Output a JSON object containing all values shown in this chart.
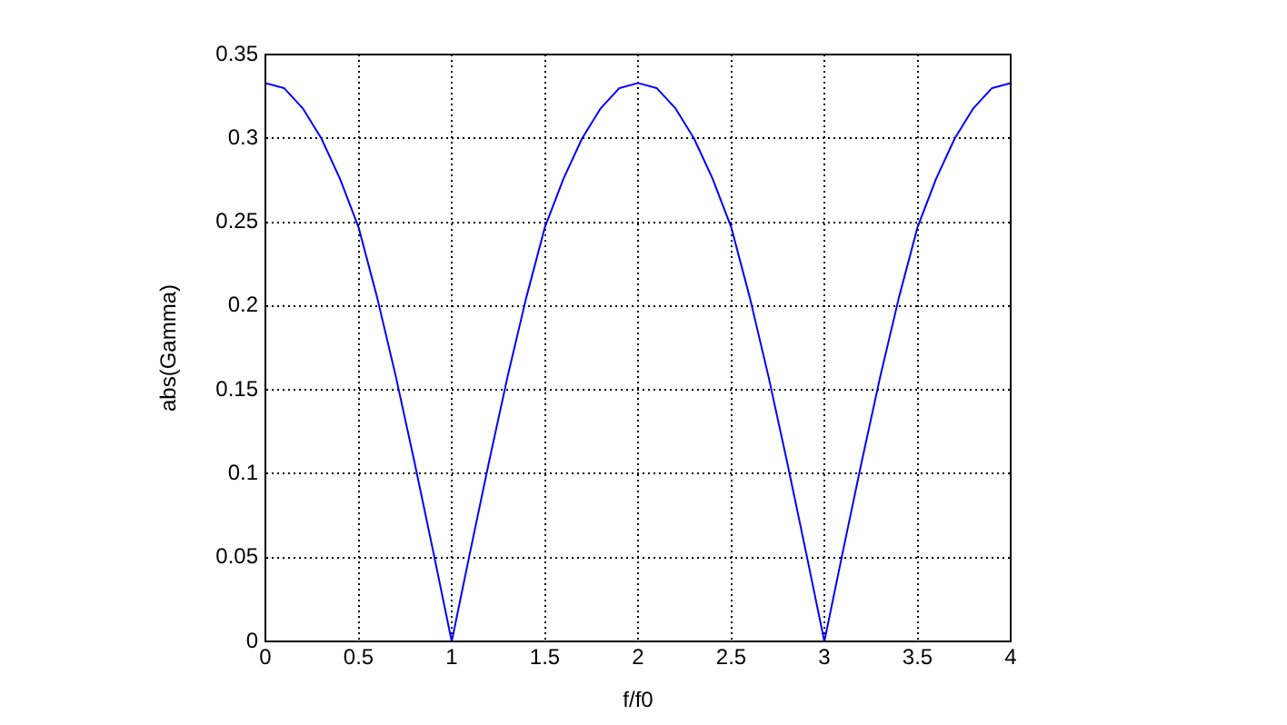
{
  "chart_data": {
    "type": "line",
    "xlabel": "f/f0",
    "ylabel": "abs(Gamma)",
    "x": [
      0,
      0.1,
      0.2,
      0.3,
      0.4,
      0.5,
      0.6,
      0.7,
      0.8,
      0.9,
      1,
      1.1,
      1.2,
      1.3,
      1.4,
      1.5,
      1.6,
      1.7,
      1.8,
      1.9,
      2,
      2.1,
      2.2,
      2.3,
      2.4,
      2.5,
      2.6,
      2.7,
      2.8,
      2.9,
      3,
      3.1,
      3.2,
      3.3,
      3.4,
      3.5,
      3.6,
      3.7,
      3.8,
      3.9,
      4
    ],
    "series": [
      {
        "color": "#0000ff",
        "values": [
          0.333,
          0.33,
          0.318,
          0.3,
          0.276,
          0.247,
          0.205,
          0.158,
          0.107,
          0.054,
          0,
          0.054,
          0.107,
          0.158,
          0.205,
          0.247,
          0.276,
          0.3,
          0.318,
          0.33,
          0.333,
          0.33,
          0.318,
          0.3,
          0.276,
          0.247,
          0.205,
          0.158,
          0.107,
          0.054,
          0,
          0.054,
          0.107,
          0.158,
          0.205,
          0.247,
          0.276,
          0.3,
          0.318,
          0.33,
          0.333
        ]
      }
    ],
    "xlim": [
      0,
      4
    ],
    "xticks": [
      0,
      0.5,
      1,
      1.5,
      2,
      2.5,
      3,
      3.5,
      4
    ],
    "ylim": [
      0,
      0.35
    ],
    "yticks": [
      0,
      0.05,
      0.1,
      0.15,
      0.2,
      0.25,
      0.3,
      0.35
    ],
    "grid": true,
    "legend": false,
    "marker": "none",
    "line_style": "solid"
  }
}
